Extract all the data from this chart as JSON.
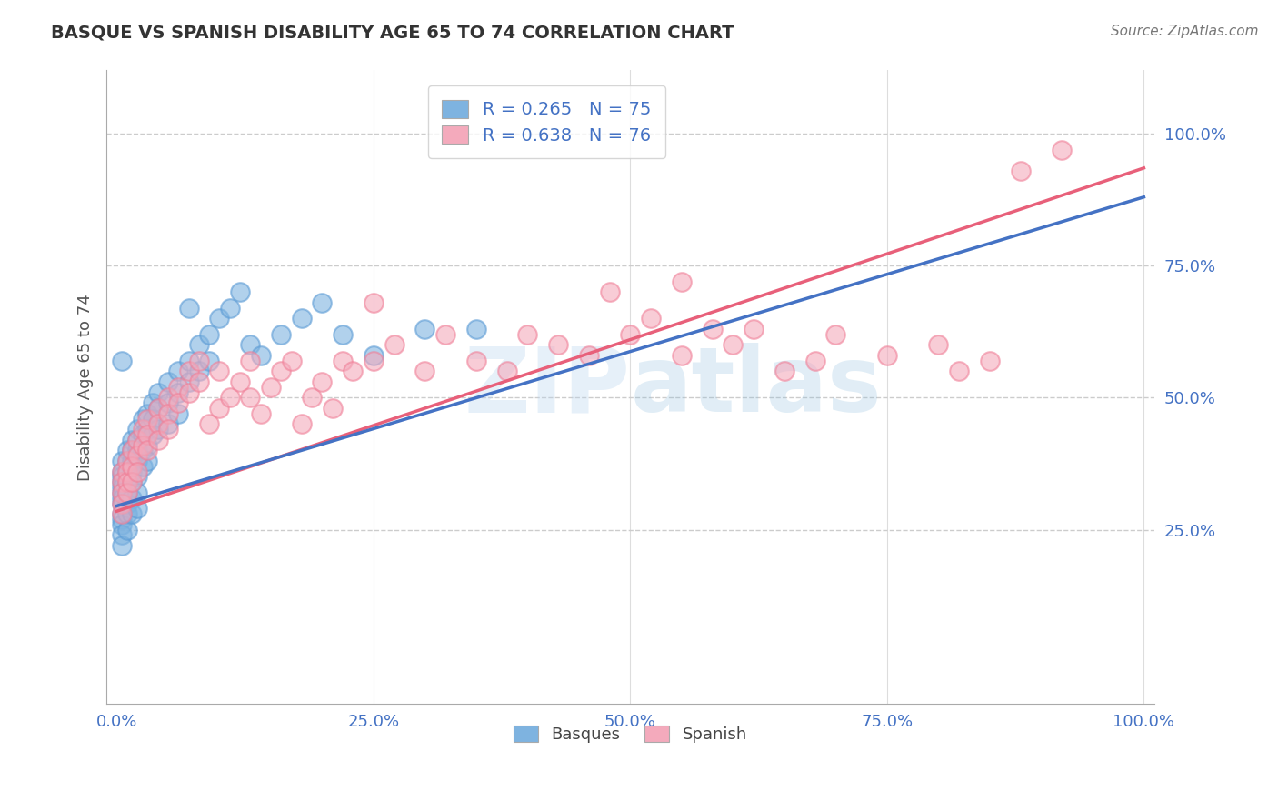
{
  "title": "BASQUE VS SPANISH DISABILITY AGE 65 TO 74 CORRELATION CHART",
  "source_text": "Source: ZipAtlas.com",
  "ylabel": "Disability Age 65 to 74",
  "xlim": [
    -0.01,
    1.01
  ],
  "ylim": [
    -0.08,
    1.12
  ],
  "xtick_labels": [
    "0.0%",
    "25.0%",
    "50.0%",
    "75.0%",
    "100.0%"
  ],
  "xtick_values": [
    0.0,
    0.25,
    0.5,
    0.75,
    1.0
  ],
  "ytick_labels": [
    "25.0%",
    "50.0%",
    "75.0%",
    "100.0%"
  ],
  "ytick_values": [
    0.25,
    0.5,
    0.75,
    1.0
  ],
  "basque_color": "#7EB3E0",
  "basque_edge": "#5B9BD5",
  "spanish_color": "#F4AABC",
  "spanish_edge": "#F08098",
  "basque_R": 0.265,
  "basque_N": 75,
  "spanish_R": 0.638,
  "spanish_N": 76,
  "background_color": "#FFFFFF",
  "grid_color": "#CCCCCC",
  "basque_line_color": "#4472C4",
  "spanish_line_color": "#E8607A",
  "basque_line_start_x": 0.0,
  "basque_line_start_y": 0.295,
  "basque_line_end_x": 1.0,
  "basque_line_end_y": 0.88,
  "spanish_line_start_x": 0.0,
  "spanish_line_start_y": 0.285,
  "spanish_line_end_x": 1.0,
  "spanish_line_end_y": 0.935,
  "basque_scatter": [
    [
      0.005,
      0.38
    ],
    [
      0.005,
      0.36
    ],
    [
      0.005,
      0.35
    ],
    [
      0.005,
      0.34
    ],
    [
      0.005,
      0.33
    ],
    [
      0.005,
      0.32
    ],
    [
      0.005,
      0.31
    ],
    [
      0.005,
      0.3
    ],
    [
      0.005,
      0.28
    ],
    [
      0.005,
      0.27
    ],
    [
      0.005,
      0.26
    ],
    [
      0.005,
      0.24
    ],
    [
      0.005,
      0.22
    ],
    [
      0.01,
      0.4
    ],
    [
      0.01,
      0.38
    ],
    [
      0.01,
      0.36
    ],
    [
      0.01,
      0.34
    ],
    [
      0.01,
      0.32
    ],
    [
      0.01,
      0.3
    ],
    [
      0.01,
      0.28
    ],
    [
      0.01,
      0.25
    ],
    [
      0.015,
      0.42
    ],
    [
      0.015,
      0.4
    ],
    [
      0.015,
      0.38
    ],
    [
      0.015,
      0.36
    ],
    [
      0.015,
      0.34
    ],
    [
      0.015,
      0.31
    ],
    [
      0.015,
      0.28
    ],
    [
      0.02,
      0.44
    ],
    [
      0.02,
      0.42
    ],
    [
      0.02,
      0.4
    ],
    [
      0.02,
      0.38
    ],
    [
      0.02,
      0.35
    ],
    [
      0.02,
      0.32
    ],
    [
      0.02,
      0.29
    ],
    [
      0.025,
      0.46
    ],
    [
      0.025,
      0.43
    ],
    [
      0.025,
      0.4
    ],
    [
      0.025,
      0.37
    ],
    [
      0.03,
      0.47
    ],
    [
      0.03,
      0.44
    ],
    [
      0.03,
      0.41
    ],
    [
      0.03,
      0.38
    ],
    [
      0.035,
      0.49
    ],
    [
      0.035,
      0.46
    ],
    [
      0.035,
      0.43
    ],
    [
      0.04,
      0.51
    ],
    [
      0.04,
      0.48
    ],
    [
      0.04,
      0.44
    ],
    [
      0.05,
      0.53
    ],
    [
      0.05,
      0.49
    ],
    [
      0.05,
      0.45
    ],
    [
      0.06,
      0.55
    ],
    [
      0.06,
      0.51
    ],
    [
      0.06,
      0.47
    ],
    [
      0.07,
      0.57
    ],
    [
      0.07,
      0.53
    ],
    [
      0.08,
      0.6
    ],
    [
      0.08,
      0.55
    ],
    [
      0.09,
      0.62
    ],
    [
      0.09,
      0.57
    ],
    [
      0.1,
      0.65
    ],
    [
      0.11,
      0.67
    ],
    [
      0.12,
      0.7
    ],
    [
      0.13,
      0.6
    ],
    [
      0.14,
      0.58
    ],
    [
      0.16,
      0.62
    ],
    [
      0.18,
      0.65
    ],
    [
      0.07,
      0.67
    ],
    [
      0.005,
      0.57
    ],
    [
      0.2,
      0.68
    ],
    [
      0.22,
      0.62
    ],
    [
      0.25,
      0.58
    ],
    [
      0.3,
      0.63
    ],
    [
      0.35,
      0.63
    ]
  ],
  "spanish_scatter": [
    [
      0.005,
      0.36
    ],
    [
      0.005,
      0.34
    ],
    [
      0.005,
      0.32
    ],
    [
      0.005,
      0.3
    ],
    [
      0.005,
      0.28
    ],
    [
      0.01,
      0.38
    ],
    [
      0.01,
      0.36
    ],
    [
      0.01,
      0.34
    ],
    [
      0.01,
      0.32
    ],
    [
      0.015,
      0.4
    ],
    [
      0.015,
      0.37
    ],
    [
      0.015,
      0.34
    ],
    [
      0.02,
      0.42
    ],
    [
      0.02,
      0.39
    ],
    [
      0.02,
      0.36
    ],
    [
      0.025,
      0.44
    ],
    [
      0.025,
      0.41
    ],
    [
      0.03,
      0.46
    ],
    [
      0.03,
      0.43
    ],
    [
      0.03,
      0.4
    ],
    [
      0.04,
      0.48
    ],
    [
      0.04,
      0.45
    ],
    [
      0.04,
      0.42
    ],
    [
      0.05,
      0.5
    ],
    [
      0.05,
      0.47
    ],
    [
      0.05,
      0.44
    ],
    [
      0.06,
      0.52
    ],
    [
      0.06,
      0.49
    ],
    [
      0.07,
      0.55
    ],
    [
      0.07,
      0.51
    ],
    [
      0.08,
      0.57
    ],
    [
      0.08,
      0.53
    ],
    [
      0.09,
      0.45
    ],
    [
      0.1,
      0.48
    ],
    [
      0.1,
      0.55
    ],
    [
      0.11,
      0.5
    ],
    [
      0.12,
      0.53
    ],
    [
      0.13,
      0.5
    ],
    [
      0.13,
      0.57
    ],
    [
      0.14,
      0.47
    ],
    [
      0.15,
      0.52
    ],
    [
      0.16,
      0.55
    ],
    [
      0.17,
      0.57
    ],
    [
      0.18,
      0.45
    ],
    [
      0.19,
      0.5
    ],
    [
      0.2,
      0.53
    ],
    [
      0.21,
      0.48
    ],
    [
      0.22,
      0.57
    ],
    [
      0.23,
      0.55
    ],
    [
      0.25,
      0.57
    ],
    [
      0.27,
      0.6
    ],
    [
      0.3,
      0.55
    ],
    [
      0.32,
      0.62
    ],
    [
      0.35,
      0.57
    ],
    [
      0.38,
      0.55
    ],
    [
      0.4,
      0.62
    ],
    [
      0.43,
      0.6
    ],
    [
      0.46,
      0.58
    ],
    [
      0.5,
      0.62
    ],
    [
      0.52,
      0.65
    ],
    [
      0.55,
      0.58
    ],
    [
      0.58,
      0.63
    ],
    [
      0.6,
      0.6
    ],
    [
      0.62,
      0.63
    ],
    [
      0.65,
      0.55
    ],
    [
      0.68,
      0.57
    ],
    [
      0.7,
      0.62
    ],
    [
      0.75,
      0.58
    ],
    [
      0.8,
      0.6
    ],
    [
      0.82,
      0.55
    ],
    [
      0.85,
      0.57
    ],
    [
      0.88,
      0.93
    ],
    [
      0.92,
      0.97
    ],
    [
      0.25,
      0.68
    ],
    [
      0.48,
      0.7
    ],
    [
      0.55,
      0.72
    ]
  ]
}
